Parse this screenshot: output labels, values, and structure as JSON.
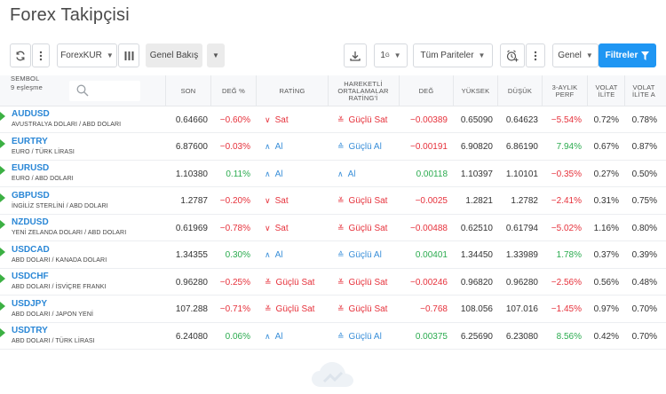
{
  "page": {
    "title": "Forex Takipçisi"
  },
  "toolbar": {
    "list_name": "ForexKUR",
    "view_name": "Genel Bakış",
    "interval": "1",
    "interval_sup": "G",
    "pairs_filter": "Tüm Pariteler",
    "settings_label": "Genel",
    "filters_label": "Filtreler"
  },
  "table": {
    "symbol_header": "SEMBOL",
    "match_count": "9 eşleşme",
    "search_placeholder": "",
    "columns": {
      "last": "SON",
      "chg_pct": "DEĞ %",
      "rating": "RATİNG",
      "ma_rating": "HAREKETLİ ORTALAMALAR RATİNG'İ",
      "chg": "DEĞ",
      "high": "YÜKSEK",
      "low": "DÜŞÜK",
      "perf_3m": "3-AYLIK PERF",
      "volat_w": "VOLAT İLİTE",
      "volat_m": "VOLAT İLİTE A"
    },
    "rows": [
      {
        "symbol": "AUDUSD",
        "desc": "AVUSTRALYA DOLARI / ABD DOLARI",
        "last": "0.64660",
        "chg_pct": "−0.60%",
        "chg_pct_dir": "neg",
        "rating": "Sat",
        "rating_type": "sell",
        "ma_rating": "Güçlü Sat",
        "ma_type": "strong-sell",
        "chg": "−0.00389",
        "chg_dir": "neg",
        "high": "0.65090",
        "low": "0.64623",
        "perf_3m": "−5.54%",
        "perf_dir": "neg",
        "volat_w": "0.72%",
        "volat_m": "0.78%"
      },
      {
        "symbol": "EURTRY",
        "desc": "EURO / TÜRK LİRASI",
        "last": "6.87600",
        "chg_pct": "−0.03%",
        "chg_pct_dir": "neg",
        "rating": "Al",
        "rating_type": "buy",
        "ma_rating": "Güçlü Al",
        "ma_type": "strong-buy",
        "chg": "−0.00191",
        "chg_dir": "neg",
        "high": "6.90820",
        "low": "6.86190",
        "perf_3m": "7.94%",
        "perf_dir": "pos",
        "volat_w": "0.67%",
        "volat_m": "0.87%"
      },
      {
        "symbol": "EURUSD",
        "desc": "EURO / ABD DOLARI",
        "last": "1.10380",
        "chg_pct": "0.11%",
        "chg_pct_dir": "pos",
        "rating": "Al",
        "rating_type": "buy",
        "ma_rating": "Al",
        "ma_type": "buy",
        "chg": "0.00118",
        "chg_dir": "pos",
        "high": "1.10397",
        "low": "1.10101",
        "perf_3m": "−0.35%",
        "perf_dir": "neg",
        "volat_w": "0.27%",
        "volat_m": "0.50%"
      },
      {
        "symbol": "GBPUSD",
        "desc": "İNGİLİZ STERLİNİ / ABD DOLARI",
        "last": "1.2787",
        "chg_pct": "−0.20%",
        "chg_pct_dir": "neg",
        "rating": "Sat",
        "rating_type": "sell",
        "ma_rating": "Güçlü Sat",
        "ma_type": "strong-sell",
        "chg": "−0.0025",
        "chg_dir": "neg",
        "high": "1.2821",
        "low": "1.2782",
        "perf_3m": "−2.41%",
        "perf_dir": "neg",
        "volat_w": "0.31%",
        "volat_m": "0.75%"
      },
      {
        "symbol": "NZDUSD",
        "desc": "YENİ ZELANDA DOLARI / ABD DOLARI",
        "last": "0.61969",
        "chg_pct": "−0.78%",
        "chg_pct_dir": "neg",
        "rating": "Sat",
        "rating_type": "sell",
        "ma_rating": "Güçlü Sat",
        "ma_type": "strong-sell",
        "chg": "−0.00488",
        "chg_dir": "neg",
        "high": "0.62510",
        "low": "0.61794",
        "perf_3m": "−5.02%",
        "perf_dir": "neg",
        "volat_w": "1.16%",
        "volat_m": "0.80%"
      },
      {
        "symbol": "USDCAD",
        "desc": "ABD DOLARI / KANADA DOLARI",
        "last": "1.34355",
        "chg_pct": "0.30%",
        "chg_pct_dir": "pos",
        "rating": "Al",
        "rating_type": "buy",
        "ma_rating": "Güçlü Al",
        "ma_type": "strong-buy",
        "chg": "0.00401",
        "chg_dir": "pos",
        "high": "1.34450",
        "low": "1.33989",
        "perf_3m": "1.78%",
        "perf_dir": "pos",
        "volat_w": "0.37%",
        "volat_m": "0.39%"
      },
      {
        "symbol": "USDCHF",
        "desc": "ABD DOLARI / İSVİÇRE FRANKI",
        "last": "0.96280",
        "chg_pct": "−0.25%",
        "chg_pct_dir": "neg",
        "rating": "Güçlü Sat",
        "rating_type": "strong-sell",
        "ma_rating": "Güçlü Sat",
        "ma_type": "strong-sell",
        "chg": "−0.00246",
        "chg_dir": "neg",
        "high": "0.96820",
        "low": "0.96280",
        "perf_3m": "−2.56%",
        "perf_dir": "neg",
        "volat_w": "0.56%",
        "volat_m": "0.48%"
      },
      {
        "symbol": "USDJPY",
        "desc": "ABD DOLARI / JAPON YENİ",
        "last": "107.288",
        "chg_pct": "−0.71%",
        "chg_pct_dir": "neg",
        "rating": "Güçlü Sat",
        "rating_type": "strong-sell",
        "ma_rating": "Güçlü Sat",
        "ma_type": "strong-sell",
        "chg": "−0.768",
        "chg_dir": "neg",
        "high": "108.056",
        "low": "107.016",
        "perf_3m": "−1.45%",
        "perf_dir": "neg",
        "volat_w": "0.97%",
        "volat_m": "0.70%"
      },
      {
        "symbol": "USDTRY",
        "desc": "ABD DOLARI / TÜRK LİRASI",
        "last": "6.24080",
        "chg_pct": "0.06%",
        "chg_pct_dir": "pos",
        "rating": "Al",
        "rating_type": "buy",
        "ma_rating": "Güçlü Al",
        "ma_type": "strong-buy",
        "chg": "0.00375",
        "chg_dir": "pos",
        "high": "6.25690",
        "low": "6.23080",
        "perf_3m": "8.56%",
        "perf_dir": "pos",
        "volat_w": "0.42%",
        "volat_m": "0.70%"
      }
    ]
  },
  "colors": {
    "negative": "#e6323c",
    "positive": "#2bab4f",
    "buy": "#3a8fd9",
    "accent": "#1f96f3",
    "symbol": "#2a87d6"
  }
}
